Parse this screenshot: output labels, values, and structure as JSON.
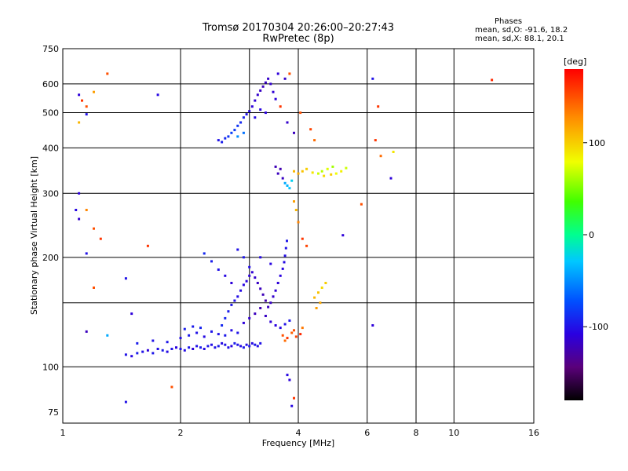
{
  "header": {
    "title_line1": "Tromsø 20170304 20:26:00–20:27:43",
    "title_line2": "RwPretec (8p)",
    "stats_heading": "Phases",
    "stats_o": "mean, sd,O: -91.6, 18.2",
    "stats_x": "mean, sd,X:  88.1, 20.1"
  },
  "colorbar": {
    "label": "[deg]",
    "min": -180,
    "max": 180,
    "ticks": [
      {
        "value": 100,
        "label": "100"
      },
      {
        "value": 0,
        "label": "0"
      },
      {
        "value": -100,
        "label": "-100"
      }
    ]
  },
  "chart_data": {
    "type": "scatter",
    "xlabel": "Frequency [MHz]",
    "ylabel": "Stationary phase Virtual Height [km]",
    "x_scale": "log",
    "y_scale": "log",
    "xlim": [
      1,
      16
    ],
    "ylim": [
      70,
      750
    ],
    "x_ticks": [
      {
        "value": 1,
        "label": "1"
      },
      {
        "value": 2,
        "label": "2"
      },
      {
        "value": 4,
        "label": "4"
      },
      {
        "value": 6,
        "label": "6"
      },
      {
        "value": 8,
        "label": "8"
      },
      {
        "value": 10,
        "label": "10"
      },
      {
        "value": 16,
        "label": "16"
      }
    ],
    "y_ticks": [
      {
        "value": 75,
        "label": "75"
      },
      {
        "value": 100,
        "label": "100"
      },
      {
        "value": 200,
        "label": "200"
      },
      {
        "value": 300,
        "label": "300"
      },
      {
        "value": 400,
        "label": "400"
      },
      {
        "value": 500,
        "label": "500"
      },
      {
        "value": 600,
        "label": "600"
      },
      {
        "value": 750,
        "label": "750"
      }
    ],
    "grid_x": [
      2,
      3,
      4,
      6,
      8,
      10
    ],
    "grid_y": [
      100,
      150,
      200,
      300,
      400,
      500,
      600
    ],
    "points": [
      [
        1.45,
        108,
        -100
      ],
      [
        1.5,
        107,
        -105
      ],
      [
        1.55,
        109,
        -95
      ],
      [
        1.6,
        110,
        -100
      ],
      [
        1.65,
        111,
        -110
      ],
      [
        1.7,
        109,
        -98
      ],
      [
        1.75,
        112,
        -102
      ],
      [
        1.8,
        111,
        -96
      ],
      [
        1.85,
        110,
        -104
      ],
      [
        1.9,
        112,
        -100
      ],
      [
        1.95,
        113,
        -108
      ],
      [
        2.0,
        112,
        -99
      ],
      [
        2.05,
        111,
        -103
      ],
      [
        2.1,
        113,
        -97
      ],
      [
        2.15,
        112,
        -110
      ],
      [
        2.2,
        114,
        -100
      ],
      [
        2.25,
        113,
        -95
      ],
      [
        2.3,
        112,
        -105
      ],
      [
        2.35,
        114,
        -98
      ],
      [
        2.4,
        115,
        -102
      ],
      [
        2.45,
        113,
        -100
      ],
      [
        2.5,
        114,
        -96
      ],
      [
        2.55,
        116,
        -104
      ],
      [
        2.6,
        115,
        -99
      ],
      [
        2.65,
        113,
        -101
      ],
      [
        2.7,
        114,
        -107
      ],
      [
        2.75,
        116,
        -95
      ],
      [
        2.8,
        115,
        -100
      ],
      [
        2.85,
        114,
        -103
      ],
      [
        2.9,
        113,
        -98
      ],
      [
        2.95,
        115,
        -102
      ],
      [
        3.0,
        114,
        -99
      ],
      [
        3.05,
        116,
        -104
      ],
      [
        3.1,
        115,
        -97
      ],
      [
        3.15,
        114,
        -101
      ],
      [
        3.2,
        116,
        -100
      ],
      [
        1.55,
        116,
        -95
      ],
      [
        1.7,
        118,
        -100
      ],
      [
        1.85,
        117,
        -98
      ],
      [
        2.0,
        120,
        -102
      ],
      [
        2.1,
        122,
        -96
      ],
      [
        2.2,
        124,
        -100
      ],
      [
        2.3,
        121,
        -104
      ],
      [
        2.4,
        125,
        -98
      ],
      [
        2.5,
        123,
        -100
      ],
      [
        2.6,
        122,
        -97
      ],
      [
        2.7,
        126,
        -103
      ],
      [
        2.8,
        124,
        -99
      ],
      [
        2.05,
        127,
        -94
      ],
      [
        2.15,
        129,
        -96
      ],
      [
        2.25,
        128,
        -92
      ],
      [
        2.55,
        130,
        -90
      ],
      [
        2.6,
        136,
        -92
      ],
      [
        2.65,
        142,
        -95
      ],
      [
        2.7,
        148,
        -98
      ],
      [
        2.75,
        152,
        -100
      ],
      [
        2.8,
        156,
        -102
      ],
      [
        2.85,
        162,
        -104
      ],
      [
        2.9,
        168,
        -106
      ],
      [
        2.95,
        172,
        -108
      ],
      [
        3.0,
        178,
        -110
      ],
      [
        3.05,
        182,
        -112
      ],
      [
        3.1,
        176,
        -115
      ],
      [
        3.15,
        170,
        -118
      ],
      [
        3.2,
        164,
        -120
      ],
      [
        3.25,
        158,
        -122
      ],
      [
        3.3,
        152,
        -125
      ],
      [
        3.35,
        146,
        -120
      ],
      [
        3.4,
        150,
        -118
      ],
      [
        3.45,
        156,
        -115
      ],
      [
        3.5,
        162,
        -112
      ],
      [
        3.55,
        170,
        -110
      ],
      [
        3.6,
        178,
        -108
      ],
      [
        3.65,
        186,
        -106
      ],
      [
        3.68,
        194,
        -104
      ],
      [
        3.7,
        202,
        -102
      ],
      [
        3.72,
        212,
        -100
      ],
      [
        3.74,
        222,
        -98
      ],
      [
        2.9,
        132,
        -110
      ],
      [
        3.0,
        136,
        -115
      ],
      [
        3.1,
        140,
        -120
      ],
      [
        3.2,
        145,
        -125
      ],
      [
        3.3,
        138,
        -118
      ],
      [
        3.4,
        133,
        -112
      ],
      [
        3.5,
        130,
        -108
      ],
      [
        3.6,
        128,
        -105
      ],
      [
        3.7,
        131,
        -100
      ],
      [
        3.8,
        134,
        -98
      ],
      [
        2.3,
        205,
        -90
      ],
      [
        2.4,
        195,
        -95
      ],
      [
        2.5,
        185,
        -100
      ],
      [
        2.6,
        178,
        -105
      ],
      [
        2.7,
        170,
        -110
      ],
      [
        2.8,
        210,
        -100
      ],
      [
        2.9,
        200,
        -98
      ],
      [
        3.0,
        188,
        -102
      ],
      [
        3.2,
        200,
        -104
      ],
      [
        3.4,
        192,
        -106
      ],
      [
        3.65,
        122,
        150
      ],
      [
        3.75,
        120,
        160
      ],
      [
        3.85,
        124,
        145
      ],
      [
        3.95,
        121,
        155
      ],
      [
        4.05,
        123,
        165
      ],
      [
        3.7,
        118,
        140
      ],
      [
        3.9,
        126,
        150
      ],
      [
        4.1,
        128,
        135
      ],
      [
        4.4,
        155,
        110
      ],
      [
        4.5,
        160,
        105
      ],
      [
        4.6,
        165,
        95
      ],
      [
        4.55,
        150,
        115
      ],
      [
        4.7,
        170,
        100
      ],
      [
        4.45,
        145,
        120
      ],
      [
        2.5,
        420,
        -100
      ],
      [
        2.55,
        415,
        -95
      ],
      [
        2.6,
        425,
        -90
      ],
      [
        2.65,
        430,
        -85
      ],
      [
        2.7,
        440,
        -80
      ],
      [
        2.75,
        448,
        -82
      ],
      [
        2.8,
        460,
        -85
      ],
      [
        2.85,
        470,
        -90
      ],
      [
        2.9,
        485,
        -95
      ],
      [
        2.95,
        495,
        -100
      ],
      [
        3.0,
        505,
        -105
      ],
      [
        3.05,
        520,
        -110
      ],
      [
        3.1,
        540,
        -112
      ],
      [
        3.15,
        560,
        -115
      ],
      [
        3.2,
        575,
        -118
      ],
      [
        3.25,
        590,
        -120
      ],
      [
        3.3,
        605,
        -118
      ],
      [
        3.35,
        620,
        -116
      ],
      [
        3.4,
        600,
        -114
      ],
      [
        3.45,
        570,
        -112
      ],
      [
        3.5,
        545,
        -110
      ],
      [
        3.3,
        500,
        -108
      ],
      [
        3.2,
        510,
        -106
      ],
      [
        3.1,
        485,
        -104
      ],
      [
        2.9,
        440,
        -60
      ],
      [
        2.8,
        430,
        -50
      ],
      [
        3.55,
        340,
        -120
      ],
      [
        3.6,
        350,
        -125
      ],
      [
        3.65,
        330,
        -118
      ],
      [
        3.5,
        355,
        -122
      ],
      [
        3.7,
        320,
        -40
      ],
      [
        3.8,
        310,
        -30
      ],
      [
        3.75,
        315,
        -35
      ],
      [
        3.85,
        325,
        -25
      ],
      [
        3.9,
        345,
        110
      ],
      [
        4.0,
        340,
        115
      ],
      [
        4.1,
        345,
        105
      ],
      [
        4.2,
        350,
        100
      ],
      [
        4.35,
        342,
        90
      ],
      [
        4.5,
        340,
        70
      ],
      [
        4.6,
        345,
        65
      ],
      [
        4.75,
        350,
        75
      ],
      [
        4.9,
        355,
        60
      ],
      [
        5.0,
        340,
        80
      ],
      [
        5.15,
        345,
        85
      ],
      [
        5.3,
        352,
        70
      ],
      [
        4.65,
        335,
        95
      ],
      [
        4.85,
        338,
        100
      ],
      [
        1.1,
        560,
        -110
      ],
      [
        1.12,
        540,
        160
      ],
      [
        1.15,
        520,
        150
      ],
      [
        1.2,
        570,
        120
      ],
      [
        1.3,
        640,
        150
      ],
      [
        1.15,
        495,
        -100
      ],
      [
        1.1,
        470,
        110
      ],
      [
        1.08,
        270,
        -105
      ],
      [
        1.1,
        255,
        -115
      ],
      [
        1.15,
        270,
        130
      ],
      [
        1.2,
        240,
        150
      ],
      [
        1.25,
        225,
        160
      ],
      [
        1.1,
        300,
        -110
      ],
      [
        1.15,
        205,
        -100
      ],
      [
        1.2,
        165,
        150
      ],
      [
        1.15,
        125,
        -120
      ],
      [
        1.3,
        122,
        -40
      ],
      [
        1.45,
        175,
        -100
      ],
      [
        1.5,
        140,
        -110
      ],
      [
        1.45,
        80,
        -100
      ],
      [
        1.65,
        215,
        160
      ],
      [
        1.75,
        560,
        -105
      ],
      [
        1.9,
        88,
        150
      ],
      [
        3.55,
        640,
        -110
      ],
      [
        3.7,
        620,
        -115
      ],
      [
        3.8,
        640,
        150
      ],
      [
        3.6,
        520,
        160
      ],
      [
        3.75,
        470,
        -115
      ],
      [
        3.9,
        440,
        -120
      ],
      [
        4.05,
        500,
        150
      ],
      [
        4.3,
        450,
        155
      ],
      [
        4.4,
        420,
        140
      ],
      [
        3.9,
        285,
        120
      ],
      [
        3.95,
        270,
        110
      ],
      [
        4.0,
        250,
        130
      ],
      [
        4.1,
        225,
        160
      ],
      [
        4.2,
        215,
        155
      ],
      [
        3.75,
        95,
        -105
      ],
      [
        3.8,
        92,
        -110
      ],
      [
        3.85,
        78,
        -105
      ],
      [
        3.9,
        82,
        160
      ],
      [
        5.2,
        230,
        -110
      ],
      [
        5.8,
        280,
        150
      ],
      [
        6.2,
        620,
        -100
      ],
      [
        6.3,
        420,
        160
      ],
      [
        6.5,
        380,
        140
      ],
      [
        6.4,
        520,
        160
      ],
      [
        6.2,
        130,
        -110
      ],
      [
        6.9,
        330,
        -110
      ],
      [
        7.0,
        390,
        90
      ],
      [
        12.5,
        615,
        165
      ]
    ]
  }
}
